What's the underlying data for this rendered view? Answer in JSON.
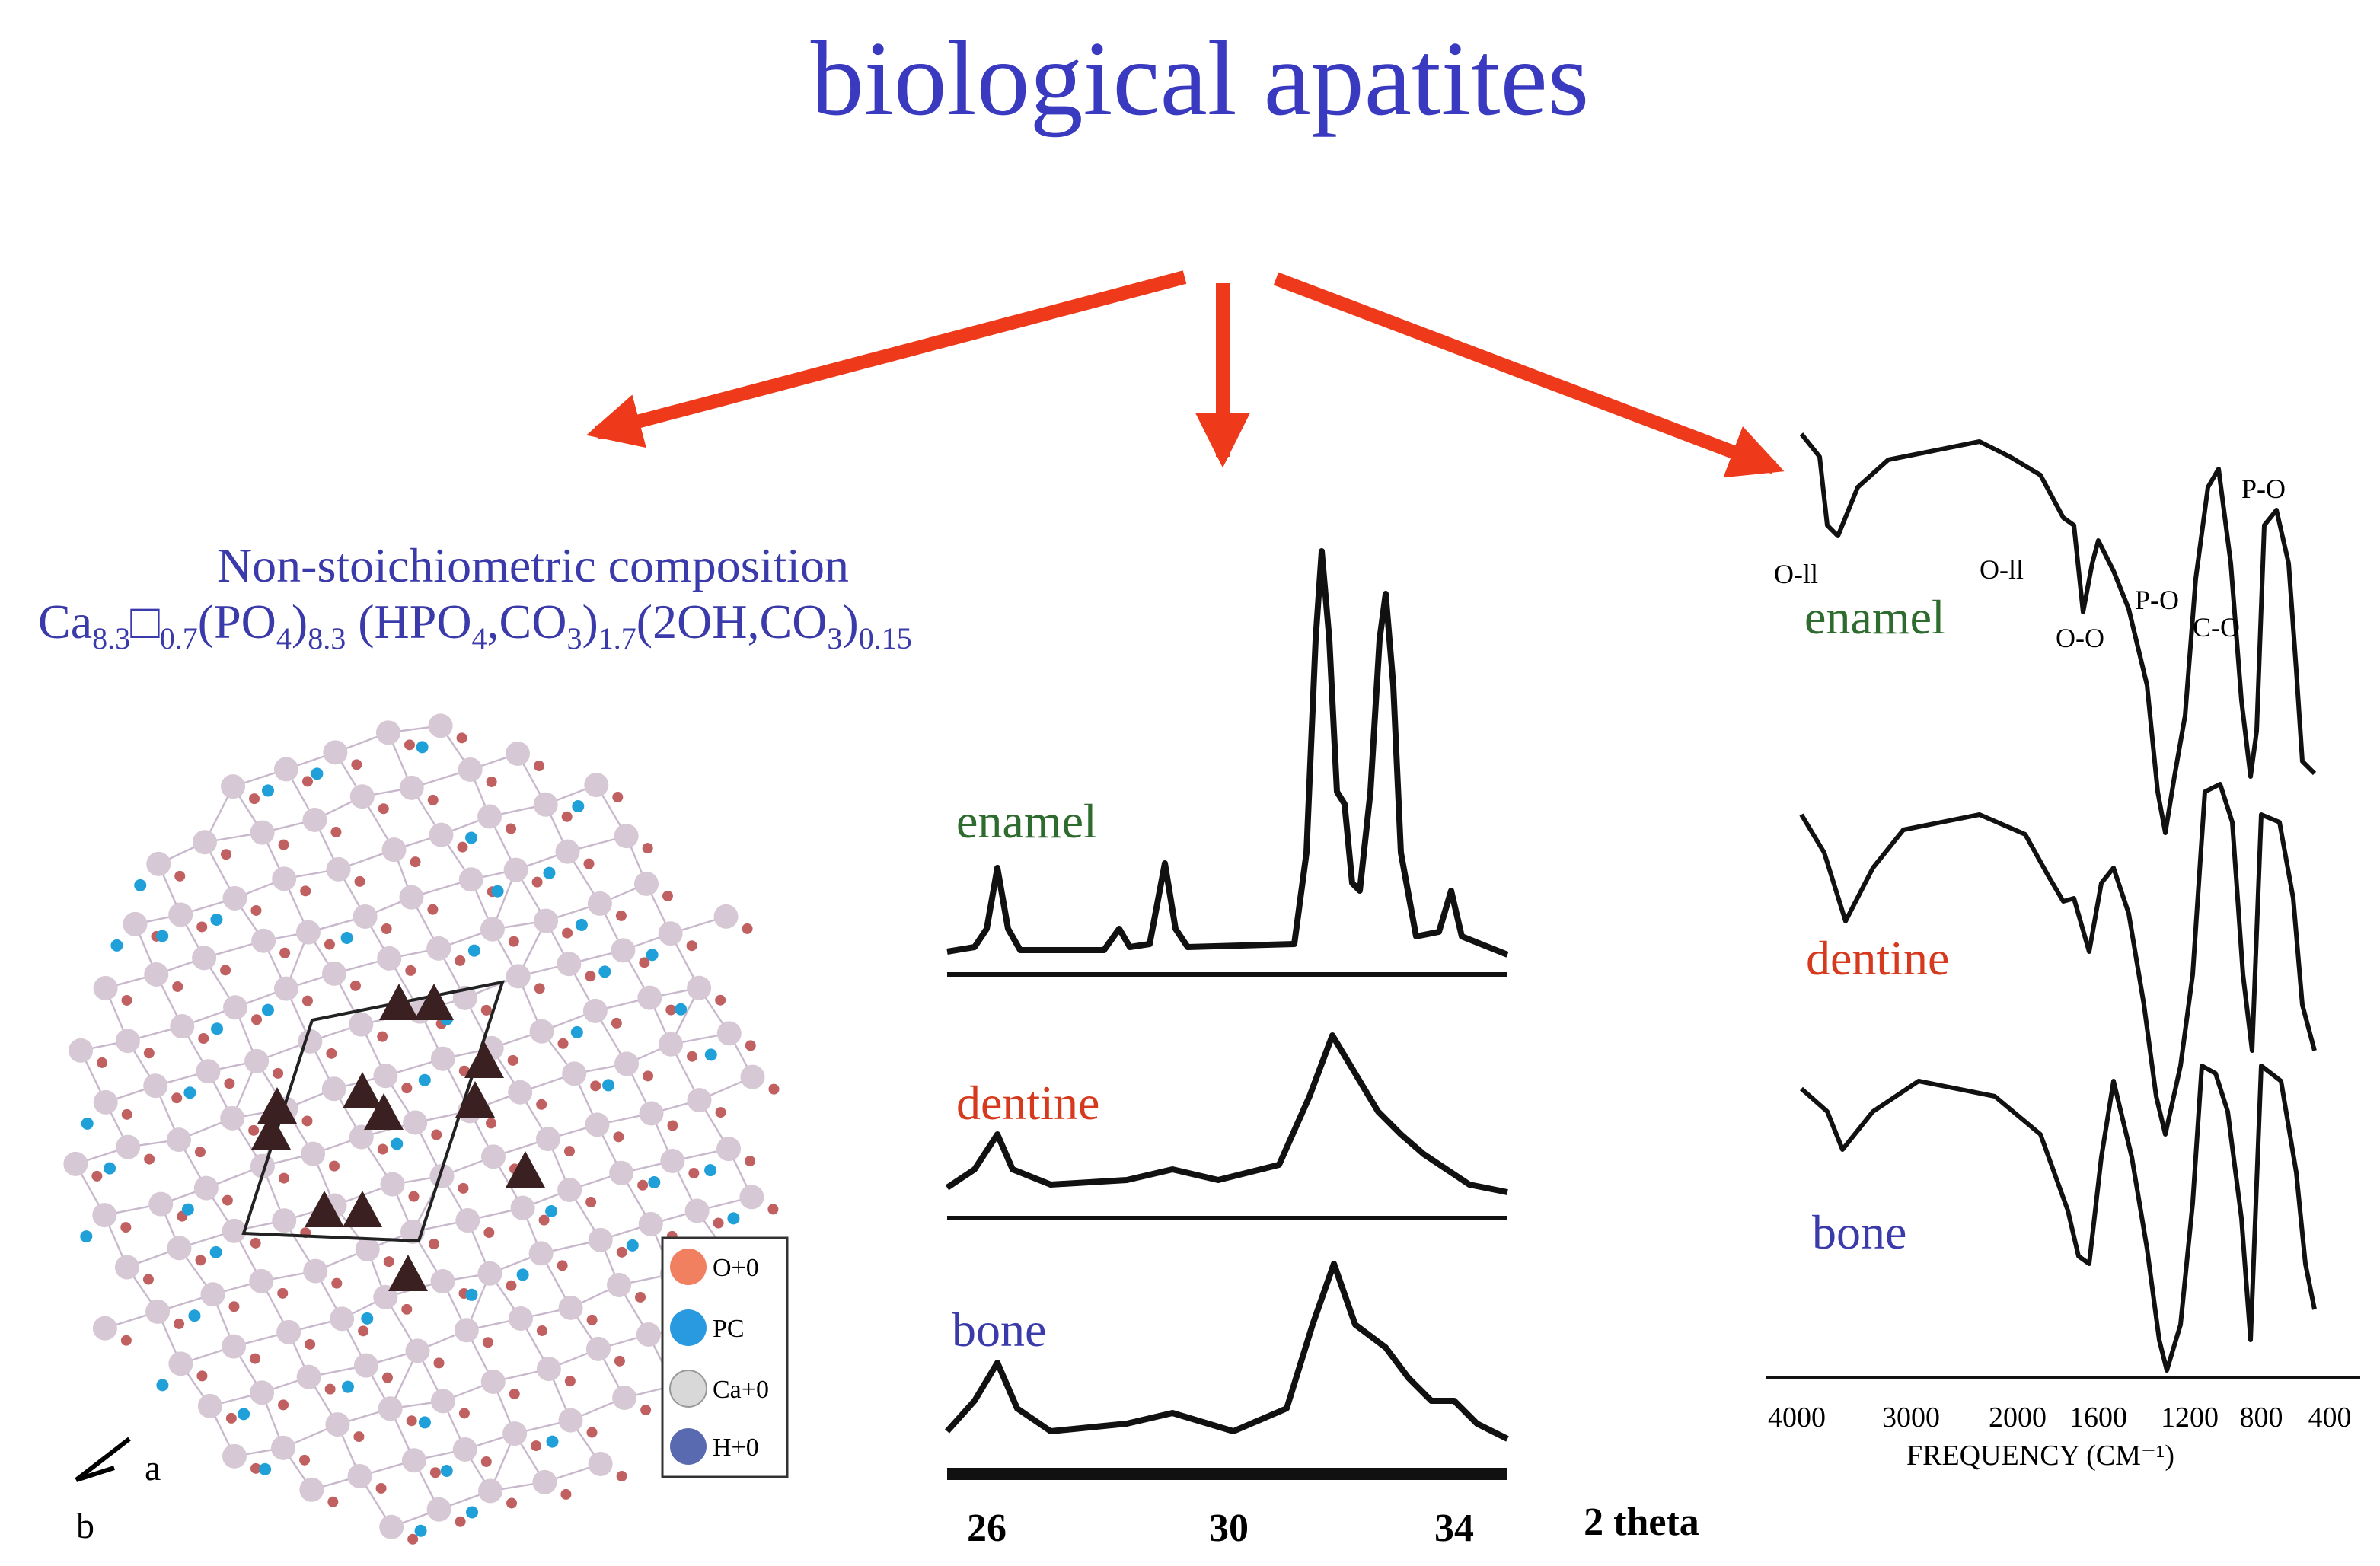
{
  "title": "biological apatites",
  "composition": {
    "heading": "Non-stoichiometric composition",
    "formula": [
      {
        "text": "Ca",
        "sub": "8.3"
      },
      {
        "text": "□",
        "sub": "0.7"
      },
      {
        "text": "(PO",
        "sub": "4"
      },
      {
        "text": ")",
        "sub": "8.3"
      },
      {
        "text": " (HPO",
        "sub": "4"
      },
      {
        "text": ",CO",
        "sub": "3"
      },
      {
        "text": ")",
        "sub": "1.7"
      },
      {
        "text": "(2OH,CO",
        "sub": "3"
      },
      {
        "text": ")",
        "sub": "0.15"
      }
    ]
  },
  "crystal": {
    "legend": [
      "O+0",
      "PC",
      "Ca+0",
      "H+0"
    ],
    "axes": [
      "a",
      "b"
    ]
  },
  "xrd": {
    "samples": [
      "enamel",
      "dentine",
      "bone"
    ],
    "ticks": [
      "26",
      "30",
      "34"
    ],
    "axis_label": "2 theta"
  },
  "ir": {
    "samples": [
      "enamel",
      "dentine",
      "bone"
    ],
    "ticks": [
      "4000",
      "3000",
      "2000",
      "1600",
      "1200",
      "800",
      "400"
    ],
    "axis_label": "FREQUENCY (CM⁻¹)",
    "band_labels": [
      "O-ll",
      "O-ll",
      "O-O",
      "P-O",
      "C-O",
      "P-O"
    ]
  }
}
